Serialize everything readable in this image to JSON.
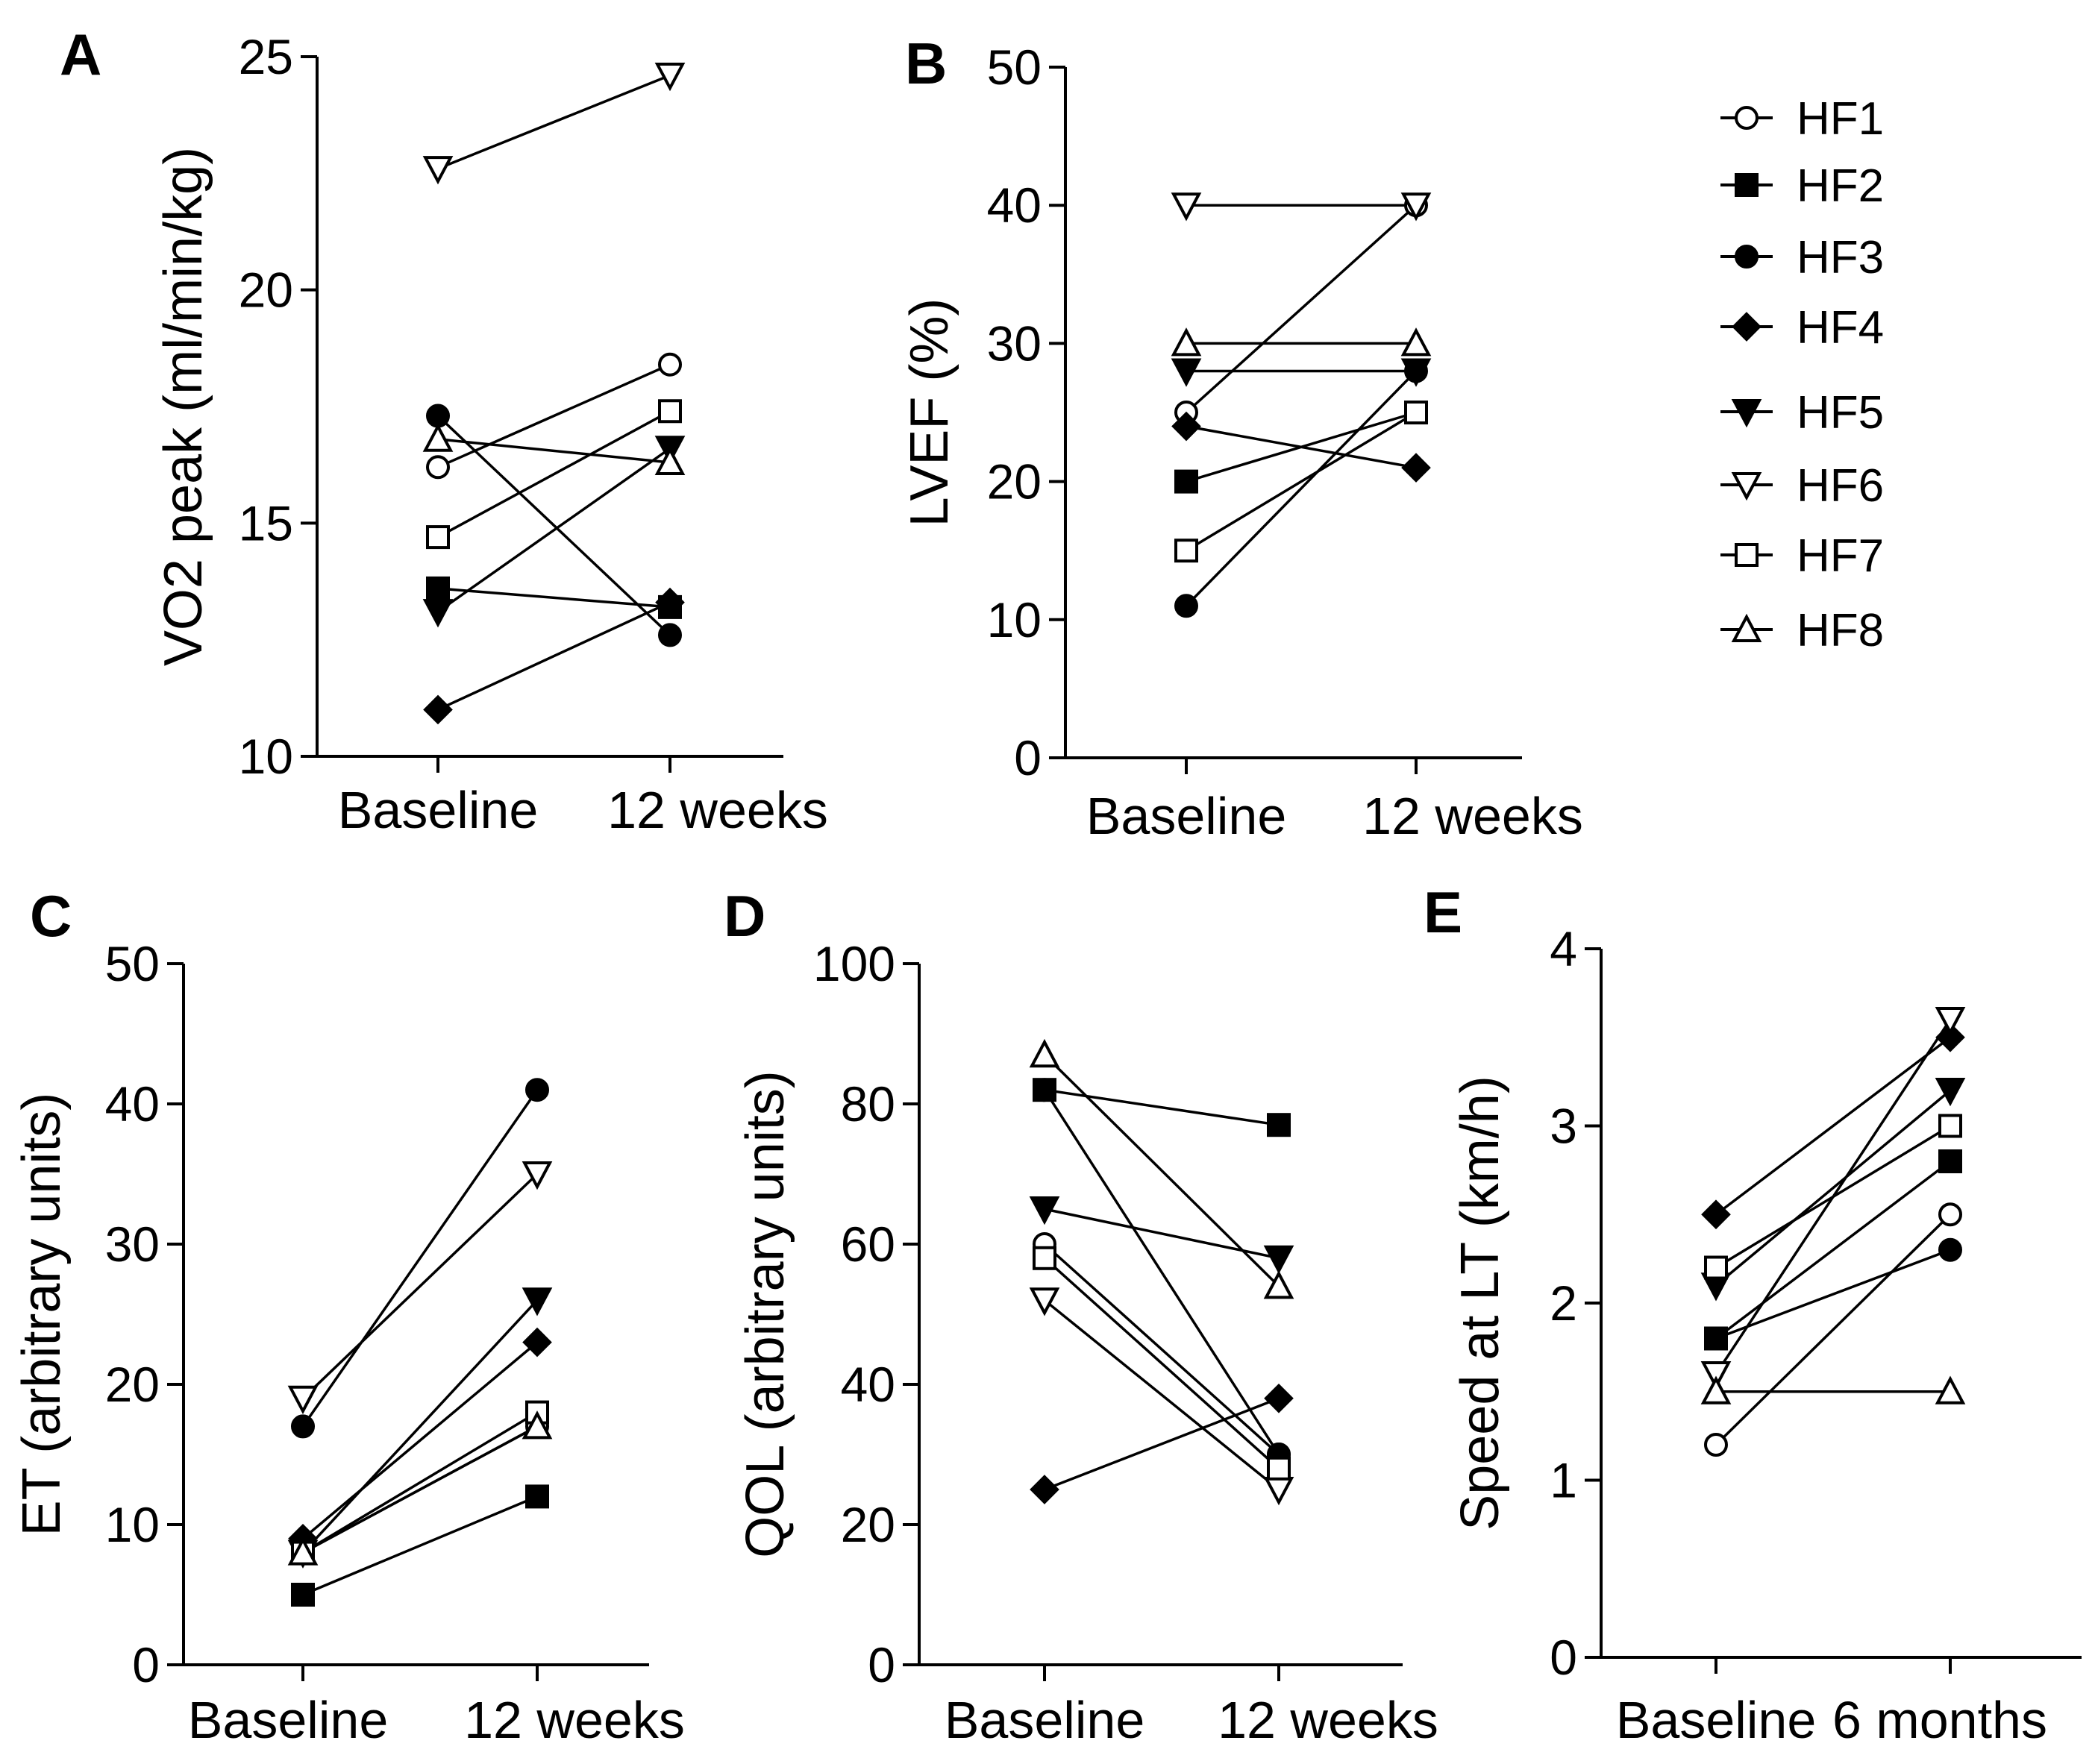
{
  "legend": {
    "entries": [
      {
        "name": "HF1",
        "marker": "circle-open"
      },
      {
        "name": "HF2",
        "marker": "square-filled"
      },
      {
        "name": "HF3",
        "marker": "circle-filled"
      },
      {
        "name": "HF4",
        "marker": "diamond-filled"
      },
      {
        "name": "HF5",
        "marker": "triangle-down-filled"
      },
      {
        "name": "HF6",
        "marker": "triangle-down-open"
      },
      {
        "name": "HF7",
        "marker": "square-open"
      },
      {
        "name": "HF8",
        "marker": "triangle-up-open"
      }
    ]
  },
  "chart_data": [
    {
      "panel": "A",
      "type": "line",
      "ylabel": "VO2 peak (ml/min/kg)",
      "categories": [
        "Baseline",
        "12 weeks"
      ],
      "ylim": [
        10,
        25
      ],
      "yticks": [
        10,
        15,
        20,
        25
      ],
      "series": [
        {
          "name": "HF1",
          "values": [
            16.2,
            18.4
          ]
        },
        {
          "name": "HF2",
          "values": [
            13.6,
            13.2
          ]
        },
        {
          "name": "HF3",
          "values": [
            17.3,
            12.6
          ]
        },
        {
          "name": "HF4",
          "values": [
            11.0,
            13.3
          ]
        },
        {
          "name": "HF5",
          "values": [
            13.1,
            16.6
          ]
        },
        {
          "name": "HF6",
          "values": [
            22.6,
            24.6
          ]
        },
        {
          "name": "HF7",
          "values": [
            14.7,
            17.4
          ]
        },
        {
          "name": "HF8",
          "values": [
            16.8,
            16.3
          ]
        }
      ]
    },
    {
      "panel": "B",
      "type": "line",
      "ylabel": "LVEF (%)",
      "categories": [
        "Baseline",
        "12 weeks"
      ],
      "ylim": [
        0,
        50
      ],
      "yticks": [
        0,
        10,
        20,
        30,
        40,
        50
      ],
      "series": [
        {
          "name": "HF1",
          "values": [
            25,
            40
          ]
        },
        {
          "name": "HF2",
          "values": [
            20,
            25
          ]
        },
        {
          "name": "HF3",
          "values": [
            11,
            28
          ]
        },
        {
          "name": "HF4",
          "values": [
            24,
            21
          ]
        },
        {
          "name": "HF5",
          "values": [
            28,
            28
          ]
        },
        {
          "name": "HF6",
          "values": [
            40,
            40
          ]
        },
        {
          "name": "HF7",
          "values": [
            15,
            25
          ]
        },
        {
          "name": "HF8",
          "values": [
            30,
            30
          ]
        }
      ]
    },
    {
      "panel": "C",
      "type": "line",
      "ylabel": "ET (arbitrary units)",
      "categories": [
        "Baseline",
        "12 weeks"
      ],
      "ylim": [
        0,
        50
      ],
      "yticks": [
        0,
        10,
        20,
        30,
        40,
        50
      ],
      "series": [
        {
          "name": "HF1",
          "values": [
            8,
            17
          ]
        },
        {
          "name": "HF2",
          "values": [
            5,
            12
          ]
        },
        {
          "name": "HF3",
          "values": [
            17,
            41
          ]
        },
        {
          "name": "HF4",
          "values": [
            9,
            23
          ]
        },
        {
          "name": "HF5",
          "values": [
            8,
            26
          ]
        },
        {
          "name": "HF6",
          "values": [
            19,
            35
          ]
        },
        {
          "name": "HF7",
          "values": [
            8,
            18
          ]
        },
        {
          "name": "HF8",
          "values": [
            8,
            17
          ]
        }
      ]
    },
    {
      "panel": "D",
      "type": "line",
      "ylabel": "QOL (arbitrary units)",
      "categories": [
        "Baseline",
        "12 weeks"
      ],
      "ylim": [
        0,
        100
      ],
      "yticks": [
        0,
        20,
        40,
        60,
        80,
        100
      ],
      "series": [
        {
          "name": "HF1",
          "values": [
            60,
            30
          ]
        },
        {
          "name": "HF2",
          "values": [
            82,
            77
          ]
        },
        {
          "name": "HF3",
          "values": [
            82,
            30
          ]
        },
        {
          "name": "HF4",
          "values": [
            25,
            38
          ]
        },
        {
          "name": "HF5",
          "values": [
            65,
            58
          ]
        },
        {
          "name": "HF6",
          "values": [
            52,
            25
          ]
        },
        {
          "name": "HF7",
          "values": [
            58,
            28
          ]
        },
        {
          "name": "HF8",
          "values": [
            87,
            54
          ]
        }
      ]
    },
    {
      "panel": "E",
      "type": "line",
      "ylabel": "Speed at LT (km/h)",
      "categories": [
        "Baseline",
        "6 months"
      ],
      "ylim": [
        0,
        4
      ],
      "yticks": [
        0,
        1,
        2,
        3,
        4
      ],
      "series": [
        {
          "name": "HF1",
          "values": [
            1.2,
            2.5
          ]
        },
        {
          "name": "HF2",
          "values": [
            1.8,
            2.8
          ]
        },
        {
          "name": "HF3",
          "values": [
            1.8,
            2.3
          ]
        },
        {
          "name": "HF4",
          "values": [
            2.5,
            3.5
          ]
        },
        {
          "name": "HF5",
          "values": [
            2.1,
            3.2
          ]
        },
        {
          "name": "HF6",
          "values": [
            1.6,
            3.6
          ]
        },
        {
          "name": "HF7",
          "values": [
            2.2,
            3.0
          ]
        },
        {
          "name": "HF8",
          "values": [
            1.5,
            1.5
          ]
        }
      ]
    }
  ]
}
